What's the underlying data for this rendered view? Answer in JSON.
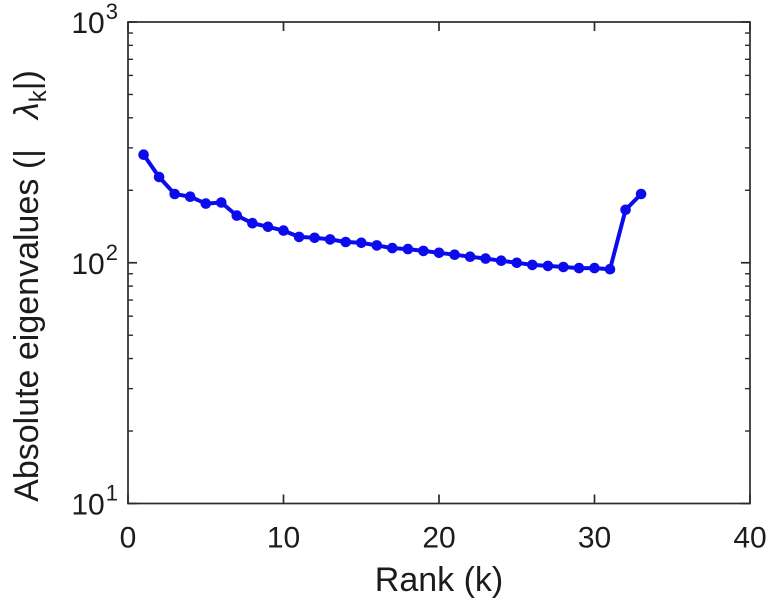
{
  "figure": {
    "background": "#ffffff",
    "axis_color": "#2b2b2b",
    "text_color": "#1c1c1c"
  },
  "chart_data": {
    "type": "line",
    "title": "",
    "xlabel": "Rank (k)",
    "ylabel": "Absolute eigenvalues (|λk|)",
    "ylabel_parts": {
      "prefix": "Absolute eigenvalues (|",
      "lambda": "λ",
      "subscript": "k",
      "suffix": "|)"
    },
    "xscale": "linear",
    "yscale": "log",
    "xlim": [
      0,
      40
    ],
    "ylim": [
      10,
      1000
    ],
    "grid": false,
    "box": true,
    "legend_position": "none",
    "x": [
      1,
      2,
      3,
      4,
      5,
      6,
      7,
      8,
      9,
      10,
      11,
      12,
      13,
      14,
      15,
      16,
      17,
      18,
      19,
      20,
      21,
      22,
      23,
      24,
      25,
      26,
      27,
      28,
      29,
      30,
      31,
      32,
      33
    ],
    "y": [
      281,
      227,
      193,
      188,
      176,
      178,
      157,
      146,
      141,
      136,
      128,
      127,
      125,
      122,
      121,
      118,
      115,
      114,
      112,
      110,
      108,
      106,
      104,
      102,
      100,
      98,
      97,
      96,
      95,
      95,
      94,
      166,
      193
    ],
    "xticks": [
      {
        "value": 0,
        "label": "0"
      },
      {
        "value": 10,
        "label": "10"
      },
      {
        "value": 20,
        "label": "20"
      },
      {
        "value": 30,
        "label": "30"
      },
      {
        "value": 40,
        "label": "40"
      }
    ],
    "yticks": [
      {
        "value": 10,
        "base": "10",
        "exp": "1"
      },
      {
        "value": 100,
        "base": "10",
        "exp": "2"
      },
      {
        "value": 1000,
        "base": "10",
        "exp": "3"
      }
    ],
    "line": {
      "color": "#0b0bee",
      "width": 4,
      "marker": "circle",
      "marker_radius": 5.3
    }
  }
}
